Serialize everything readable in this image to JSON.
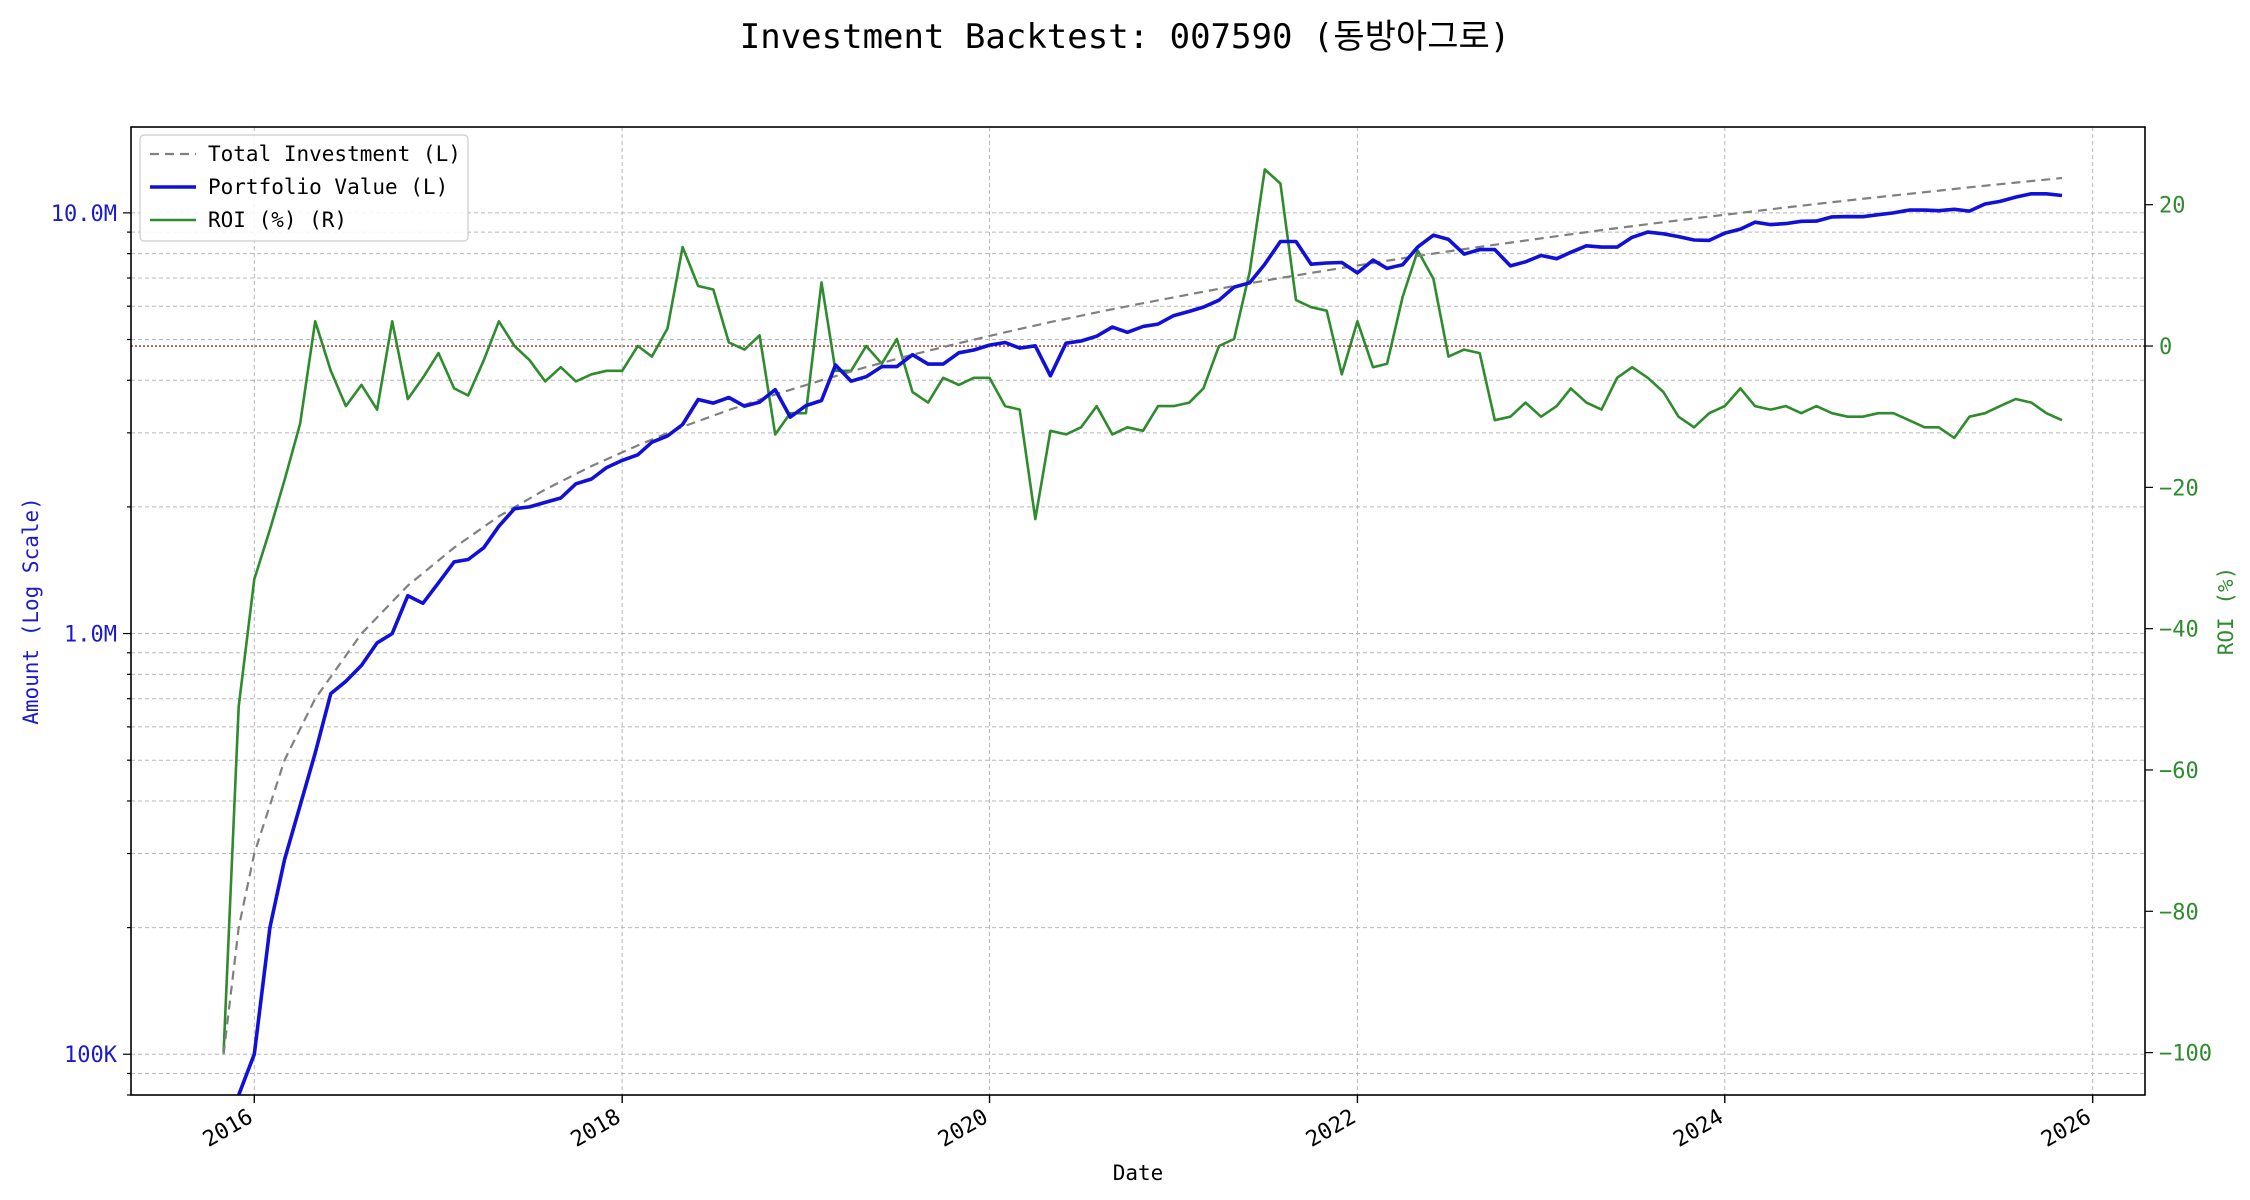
{
  "chart_data": {
    "type": "line",
    "title": "Investment Backtest: 007590 (동방아그로)",
    "xlabel": "Date",
    "ylabel_left": "Amount (Log Scale)",
    "ylabel_right": "ROI (%)",
    "left_axis": {
      "scale": "log",
      "ylim": [
        80000,
        16000000
      ],
      "ticks": [
        100000,
        1000000,
        10000000
      ],
      "tick_labels": [
        "100K",
        "1.0M",
        "10.0M"
      ],
      "color": "#1a1acc"
    },
    "right_axis": {
      "scale": "linear",
      "ylim": [
        -106,
        31
      ],
      "ticks": [
        -100,
        -80,
        -60,
        -40,
        -20,
        0,
        20
      ],
      "tick_labels": [
        "−100",
        "−80",
        "−60",
        "−40",
        "−20",
        "0",
        "20"
      ],
      "color": "#2e8b2e",
      "reference_line": 0
    },
    "x_axis": {
      "type": "date",
      "range": [
        "2015-05-01",
        "2026-04-15"
      ],
      "ticks": [
        "2016-01-01",
        "2018-01-01",
        "2020-01-01",
        "2022-01-01",
        "2024-01-01",
        "2026-01-01"
      ],
      "tick_labels": [
        "2016",
        "2018",
        "2020",
        "2022",
        "2024",
        "2026"
      ]
    },
    "grid": true,
    "legend_position": "upper-left",
    "series": [
      {
        "name": "Total Investment (L)",
        "axis": "left",
        "style": "dashed",
        "color": "#808080",
        "x": [
          "2015-11-01",
          "2015-12-01",
          "2016-01-01",
          "2016-03-01",
          "2016-05-01",
          "2016-08-01",
          "2016-11-01",
          "2017-02-01",
          "2017-05-01",
          "2017-08-01",
          "2017-11-01",
          "2018-02-01",
          "2018-05-01",
          "2018-08-01",
          "2018-11-01",
          "2019-02-01",
          "2019-05-01",
          "2019-08-01",
          "2019-11-01",
          "2020-02-01",
          "2020-05-01",
          "2020-08-01",
          "2020-11-01",
          "2021-02-01",
          "2021-05-01",
          "2021-08-01",
          "2021-11-01",
          "2022-02-01",
          "2022-05-01",
          "2022-08-01",
          "2022-11-01",
          "2023-02-01",
          "2023-05-01",
          "2023-08-01",
          "2023-11-01",
          "2024-02-01",
          "2024-05-01",
          "2024-08-01",
          "2024-11-01",
          "2025-02-01",
          "2025-05-01",
          "2025-08-01",
          "2025-11-01"
        ],
        "values": [
          100000,
          200000,
          300000,
          500000,
          700000,
          1000000,
          1300000,
          1600000,
          1900000,
          2200000,
          2500000,
          2800000,
          3100000,
          3400000,
          3700000,
          4000000,
          4300000,
          4600000,
          4900000,
          5200000,
          5500000,
          5800000,
          6100000,
          6400000,
          6700000,
          7000000,
          7300000,
          7600000,
          7900000,
          8200000,
          8500000,
          8800000,
          9100000,
          9400000,
          9700000,
          10000000,
          10300000,
          10600000,
          10900000,
          11200000,
          11500000,
          11800000,
          12100000
        ]
      },
      {
        "name": "Portfolio Value (L)",
        "axis": "left",
        "style": "solid-thick",
        "color": "#1010d8",
        "x": [
          "2015-12-01",
          "2016-01-01",
          "2016-02-01",
          "2016-03-01",
          "2016-04-01",
          "2016-05-01",
          "2016-06-01",
          "2016-07-01",
          "2016-08-01",
          "2016-09-01",
          "2016-10-01",
          "2016-11-01",
          "2016-12-01",
          "2017-01-01",
          "2017-02-01",
          "2017-03-01",
          "2017-04-01",
          "2017-05-01",
          "2017-06-01",
          "2017-07-01",
          "2017-08-01",
          "2017-09-01",
          "2017-10-01",
          "2017-11-01",
          "2017-12-01",
          "2018-01-01",
          "2018-02-01",
          "2018-03-01",
          "2018-04-01",
          "2018-05-01",
          "2018-06-01",
          "2018-07-01",
          "2018-08-01",
          "2018-09-01",
          "2018-10-01",
          "2018-11-01",
          "2018-12-01",
          "2019-01-01",
          "2019-02-01",
          "2019-03-01",
          "2019-04-01",
          "2019-05-01",
          "2019-06-01",
          "2019-07-01",
          "2019-08-01",
          "2019-09-01",
          "2019-10-01",
          "2019-11-01",
          "2019-12-01",
          "2020-01-01",
          "2020-02-01",
          "2020-03-01",
          "2020-04-01",
          "2020-05-01",
          "2020-06-01",
          "2020-07-01",
          "2020-08-01",
          "2020-09-01",
          "2020-10-01",
          "2020-11-01",
          "2020-12-01",
          "2021-01-01",
          "2021-02-01",
          "2021-03-01",
          "2021-04-01",
          "2021-05-01",
          "2021-06-01",
          "2021-07-01",
          "2021-08-01",
          "2021-09-01",
          "2021-10-01",
          "2021-11-01",
          "2021-12-01",
          "2022-01-01",
          "2022-02-01",
          "2022-03-01",
          "2022-04-01",
          "2022-05-01",
          "2022-06-01",
          "2022-07-01",
          "2022-08-01",
          "2022-09-01",
          "2022-10-01",
          "2022-11-01",
          "2022-12-01",
          "2023-01-01",
          "2023-02-01",
          "2023-03-01",
          "2023-04-01",
          "2023-05-01",
          "2023-06-01",
          "2023-07-01",
          "2023-08-01",
          "2023-09-01",
          "2023-10-01",
          "2023-11-01",
          "2023-12-01",
          "2024-01-01",
          "2024-02-01",
          "2024-03-01",
          "2024-04-01",
          "2024-05-01",
          "2024-06-01",
          "2024-07-01",
          "2024-08-01",
          "2024-09-01",
          "2024-10-01",
          "2024-11-01",
          "2024-12-01",
          "2025-01-01",
          "2025-02-01",
          "2025-03-01",
          "2025-04-01",
          "2025-05-01",
          "2025-06-01",
          "2025-07-01",
          "2025-08-01",
          "2025-09-01",
          "2025-10-01",
          "2025-11-01"
        ],
        "values": [
          80000,
          100000,
          200000,
          290000,
          390000,
          520000,
          720000,
          770000,
          840000,
          950000,
          1000000,
          1230000,
          1180000,
          1320000,
          1480000,
          1500000,
          1600000,
          1800000,
          1980000,
          2000000,
          2050000,
          2100000,
          2270000,
          2330000,
          2480000,
          2580000,
          2660000,
          2850000,
          2950000,
          3140000,
          3600000,
          3530000,
          3640000,
          3470000,
          3550000,
          3800000,
          3270000,
          3480000,
          3580000,
          4350000,
          3980000,
          4080000,
          4310000,
          4310000,
          4600000,
          4370000,
          4370000,
          4650000,
          4720000,
          4850000,
          4920000,
          4770000,
          4830000,
          4100000,
          4900000,
          4960000,
          5090000,
          5350000,
          5200000,
          5370000,
          5440000,
          5700000,
          5830000,
          5970000,
          6200000,
          6660000,
          6820000,
          7550000,
          8550000,
          8550000,
          7550000,
          7600000,
          7620000,
          7200000,
          7720000,
          7380000,
          7530000,
          8300000,
          8850000,
          8650000,
          7980000,
          8180000,
          8180000,
          7480000,
          7650000,
          7920000,
          7780000,
          8060000,
          8350000,
          8290000,
          8290000,
          8750000,
          9000000,
          8920000,
          8780000,
          8620000,
          8600000,
          8950000,
          9150000,
          9500000,
          9380000,
          9430000,
          9550000,
          9560000,
          9780000,
          9800000,
          9790000,
          9900000,
          10000000,
          10150000,
          10150000,
          10120000,
          10200000,
          10100000,
          10500000,
          10650000,
          10900000,
          11100000,
          11100000,
          11000000
        ]
      },
      {
        "name": "ROI (%) (R)",
        "axis": "right",
        "style": "solid",
        "color": "#2e8b2e",
        "x": [
          "2015-11-01",
          "2015-12-01",
          "2016-01-01",
          "2016-02-01",
          "2016-03-01",
          "2016-04-01",
          "2016-05-01",
          "2016-06-01",
          "2016-07-01",
          "2016-08-01",
          "2016-09-01",
          "2016-10-01",
          "2016-11-01",
          "2016-12-01",
          "2017-01-01",
          "2017-02-01",
          "2017-03-01",
          "2017-04-01",
          "2017-05-01",
          "2017-06-01",
          "2017-07-01",
          "2017-08-01",
          "2017-09-01",
          "2017-10-01",
          "2017-11-01",
          "2017-12-01",
          "2018-01-01",
          "2018-02-01",
          "2018-03-01",
          "2018-04-01",
          "2018-05-01",
          "2018-06-01",
          "2018-07-01",
          "2018-08-01",
          "2018-09-01",
          "2018-10-01",
          "2018-11-01",
          "2018-12-01",
          "2019-01-01",
          "2019-02-01",
          "2019-03-01",
          "2019-04-01",
          "2019-05-01",
          "2019-06-01",
          "2019-07-01",
          "2019-08-01",
          "2019-09-01",
          "2019-10-01",
          "2019-11-01",
          "2019-12-01",
          "2020-01-01",
          "2020-02-01",
          "2020-03-01",
          "2020-04-01",
          "2020-05-01",
          "2020-06-01",
          "2020-07-01",
          "2020-08-01",
          "2020-09-01",
          "2020-10-01",
          "2020-11-01",
          "2020-12-01",
          "2021-01-01",
          "2021-02-01",
          "2021-03-01",
          "2021-04-01",
          "2021-05-01",
          "2021-06-01",
          "2021-07-01",
          "2021-08-01",
          "2021-09-01",
          "2021-10-01",
          "2021-11-01",
          "2021-12-01",
          "2022-01-01",
          "2022-02-01",
          "2022-03-01",
          "2022-04-01",
          "2022-05-01",
          "2022-06-01",
          "2022-07-01",
          "2022-08-01",
          "2022-09-01",
          "2022-10-01",
          "2022-11-01",
          "2022-12-01",
          "2023-01-01",
          "2023-02-01",
          "2023-03-01",
          "2023-04-01",
          "2023-05-01",
          "2023-06-01",
          "2023-07-01",
          "2023-08-01",
          "2023-09-01",
          "2023-10-01",
          "2023-11-01",
          "2023-12-01",
          "2024-01-01",
          "2024-02-01",
          "2024-03-01",
          "2024-04-01",
          "2024-05-01",
          "2024-06-01",
          "2024-07-01",
          "2024-08-01",
          "2024-09-01",
          "2024-10-01",
          "2024-11-01",
          "2024-12-01",
          "2025-01-01",
          "2025-02-01",
          "2025-03-01",
          "2025-04-01",
          "2025-05-01",
          "2025-06-01",
          "2025-07-01",
          "2025-08-01",
          "2025-09-01",
          "2025-10-01",
          "2025-11-01"
        ],
        "values": [
          -100,
          -51,
          -33,
          -26,
          -19,
          -11,
          3.5,
          -3.5,
          -8.5,
          -5.5,
          -9,
          3.5,
          -7.5,
          -4.5,
          -1,
          -6,
          -7,
          -2,
          3.5,
          0,
          -2,
          -5,
          -3,
          -5,
          -4,
          -3.5,
          -3.5,
          0,
          -1.5,
          2.5,
          14,
          8.5,
          8,
          0.5,
          -0.5,
          1.5,
          -12.5,
          -9.5,
          -9.5,
          9,
          -3.5,
          -3.5,
          0,
          -2.5,
          1,
          -6.5,
          -8,
          -4.5,
          -5.5,
          -4.5,
          -4.5,
          -8.5,
          -9,
          -24.5,
          -12,
          -12.5,
          -11.5,
          -8.5,
          -12.5,
          -11.5,
          -12,
          -8.5,
          -8.5,
          -8,
          -6,
          0,
          1,
          10.5,
          25,
          23,
          6.5,
          5.5,
          5,
          -4,
          3.5,
          -3,
          -2.5,
          7,
          13.5,
          9.5,
          -1.5,
          -0.5,
          -1,
          -10.5,
          -10,
          -8,
          -10,
          -8.5,
          -6,
          -8,
          -9,
          -4.5,
          -3,
          -4.5,
          -6.5,
          -10,
          -11.5,
          -9.5,
          -8.5,
          -6,
          -8.5,
          -9,
          -8.5,
          -9.5,
          -8.5,
          -9.5,
          -10,
          -10,
          -9.5,
          -9.5,
          -10.5,
          -11.5,
          -11.5,
          -13,
          -10,
          -9.5,
          -8.5,
          -7.5,
          -8,
          -9.5,
          -10.5
        ]
      }
    ]
  }
}
